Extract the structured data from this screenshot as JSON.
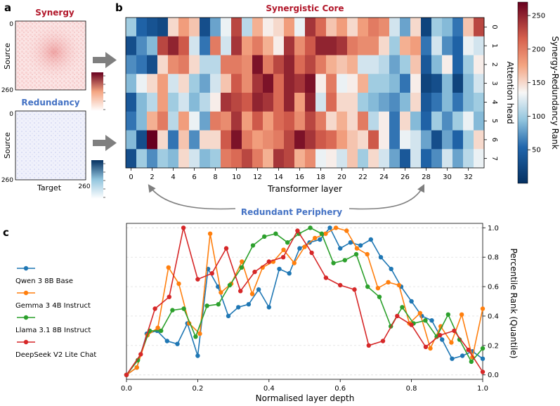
{
  "panels": {
    "a": {
      "letter": "a",
      "synergy_title": "Synergy",
      "redundancy_title": "Redundancy",
      "ylabel": "Source",
      "xlabel": "Target",
      "tick_0": "0",
      "tick_260": "260",
      "colors": {
        "synergy": "#b2182b",
        "redundancy": "#4472c4"
      }
    },
    "b": {
      "letter": "b",
      "core_label": "Synergistic Core",
      "periphery_label": "Redundant Periphery"
    },
    "c": {
      "letter": "c"
    }
  },
  "chart_data": [
    {
      "type": "heatmap",
      "title": "Synergistic Core",
      "xlabel": "Transformer layer",
      "ylabel": "Attention head",
      "colorbar_label": "Synergy-Redundancy Rank",
      "colorbar_range": [
        0,
        270
      ],
      "colorbar_ticks": [
        50,
        100,
        150,
        200,
        250
      ],
      "colormap": "RdBu_r",
      "x_ticks": [
        0,
        2,
        4,
        6,
        8,
        10,
        12,
        14,
        16,
        18,
        20,
        22,
        24,
        26,
        28,
        30,
        32
      ],
      "y_ticks": [
        0,
        1,
        2,
        3,
        4,
        5,
        6,
        7
      ],
      "n_layers": 34,
      "n_heads": 8,
      "values": [
        [
          100,
          50,
          35,
          25,
          150,
          180,
          160,
          30,
          80,
          130,
          230,
          110,
          170,
          140,
          150,
          180,
          130,
          240,
          210,
          160,
          180,
          150,
          180,
          200,
          190,
          120,
          80,
          150,
          20,
          100,
          90,
          60,
          160,
          230
        ],
        [
          30,
          70,
          90,
          230,
          250,
          220,
          120,
          60,
          200,
          120,
          240,
          180,
          200,
          170,
          140,
          240,
          190,
          220,
          250,
          250,
          240,
          200,
          190,
          190,
          150,
          100,
          170,
          180,
          60,
          120,
          70,
          50,
          130,
          120
        ],
        [
          70,
          60,
          30,
          150,
          190,
          200,
          150,
          110,
          110,
          200,
          200,
          190,
          260,
          200,
          230,
          250,
          210,
          230,
          200,
          170,
          160,
          170,
          120,
          120,
          110,
          80,
          100,
          160,
          40,
          90,
          140,
          50,
          100,
          140
        ],
        [
          90,
          130,
          150,
          180,
          120,
          150,
          100,
          80,
          120,
          160,
          220,
          190,
          240,
          260,
          210,
          250,
          240,
          260,
          140,
          200,
          130,
          140,
          170,
          100,
          100,
          90,
          60,
          140,
          20,
          30,
          90,
          20,
          90,
          120
        ],
        [
          40,
          90,
          110,
          180,
          100,
          120,
          90,
          110,
          140,
          240,
          230,
          220,
          250,
          240,
          210,
          250,
          180,
          250,
          120,
          210,
          150,
          150,
          100,
          90,
          80,
          70,
          90,
          150,
          40,
          60,
          90,
          60,
          90,
          100
        ],
        [
          60,
          90,
          170,
          200,
          110,
          180,
          130,
          80,
          200,
          190,
          240,
          180,
          220,
          180,
          210,
          220,
          190,
          230,
          200,
          150,
          170,
          150,
          200,
          110,
          140,
          60,
          150,
          90,
          50,
          100,
          70,
          100,
          130,
          90
        ],
        [
          90,
          30,
          270,
          150,
          60,
          160,
          70,
          150,
          150,
          220,
          260,
          200,
          180,
          190,
          200,
          230,
          260,
          240,
          220,
          210,
          180,
          160,
          150,
          220,
          140,
          60,
          130,
          120,
          80,
          30,
          80,
          50,
          100,
          150
        ],
        [
          30,
          100,
          70,
          100,
          90,
          150,
          120,
          90,
          100,
          200,
          210,
          230,
          200,
          170,
          240,
          230,
          170,
          190,
          130,
          140,
          120,
          160,
          100,
          150,
          120,
          80,
          40,
          120,
          50,
          70,
          120,
          80,
          110,
          130
        ]
      ]
    },
    {
      "type": "line",
      "xlabel": "Normalised layer depth",
      "ylabel": "Percentile Rank (Quantile)",
      "xlim": [
        0,
        1
      ],
      "ylim": [
        -0.03,
        1.03
      ],
      "x_ticks": [
        "0.0",
        "0.2",
        "0.4",
        "0.6",
        "0.8",
        "1.0"
      ],
      "y_ticks": [
        "0.0",
        "0.2",
        "0.4",
        "0.6",
        "0.8",
        "1.0"
      ],
      "grid": true,
      "legend_position": "left, outside",
      "series": [
        {
          "name": "Qwen 3 8B Base",
          "color": "#1f77b4",
          "x": [
            0.0,
            0.029,
            0.057,
            0.086,
            0.114,
            0.143,
            0.171,
            0.2,
            0.229,
            0.257,
            0.286,
            0.314,
            0.343,
            0.371,
            0.4,
            0.429,
            0.457,
            0.486,
            0.514,
            0.543,
            0.571,
            0.6,
            0.629,
            0.657,
            0.686,
            0.714,
            0.743,
            0.771,
            0.8,
            0.829,
            0.857,
            0.886,
            0.914,
            0.943,
            0.971,
            1.0
          ],
          "y": [
            0.0,
            0.05,
            0.28,
            0.3,
            0.23,
            0.21,
            0.35,
            0.13,
            0.72,
            0.6,
            0.4,
            0.46,
            0.48,
            0.58,
            0.46,
            0.72,
            0.69,
            0.86,
            0.9,
            0.92,
            1.0,
            0.86,
            0.9,
            0.88,
            0.92,
            0.8,
            0.72,
            0.6,
            0.5,
            0.4,
            0.37,
            0.24,
            0.11,
            0.13,
            0.16,
            0.11
          ]
        },
        {
          "name": "Gemma 3 4B Instruct",
          "color": "#ff7f0e",
          "x": [
            0.0,
            0.029,
            0.059,
            0.088,
            0.118,
            0.147,
            0.176,
            0.206,
            0.235,
            0.265,
            0.294,
            0.324,
            0.353,
            0.382,
            0.412,
            0.441,
            0.471,
            0.5,
            0.529,
            0.559,
            0.588,
            0.618,
            0.647,
            0.676,
            0.706,
            0.735,
            0.765,
            0.794,
            0.824,
            0.853,
            0.882,
            0.912,
            0.941,
            0.971,
            1.0
          ],
          "y": [
            0.0,
            0.05,
            0.27,
            0.32,
            0.73,
            0.62,
            0.35,
            0.28,
            0.96,
            0.56,
            0.62,
            0.77,
            0.55,
            0.73,
            0.77,
            0.85,
            0.76,
            0.87,
            0.93,
            0.96,
            1.0,
            0.98,
            0.86,
            0.82,
            0.59,
            0.63,
            0.61,
            0.35,
            0.42,
            0.18,
            0.33,
            0.22,
            0.41,
            0.12,
            0.45
          ]
        },
        {
          "name": "Llama 3.1 8B Instruct",
          "color": "#2ca02c",
          "x": [
            0.0,
            0.032,
            0.065,
            0.097,
            0.129,
            0.161,
            0.194,
            0.226,
            0.258,
            0.29,
            0.323,
            0.355,
            0.387,
            0.419,
            0.452,
            0.484,
            0.516,
            0.548,
            0.581,
            0.613,
            0.645,
            0.677,
            0.71,
            0.742,
            0.774,
            0.806,
            0.839,
            0.871,
            0.903,
            0.935,
            0.968,
            1.0
          ],
          "y": [
            0.0,
            0.1,
            0.3,
            0.3,
            0.44,
            0.45,
            0.26,
            0.47,
            0.48,
            0.61,
            0.73,
            0.88,
            0.94,
            0.96,
            0.9,
            0.96,
            1.0,
            0.96,
            0.76,
            0.78,
            0.82,
            0.6,
            0.53,
            0.33,
            0.46,
            0.35,
            0.37,
            0.26,
            0.41,
            0.24,
            0.09,
            0.18
          ]
        },
        {
          "name": "DeepSeek V2 Lite Chat",
          "color": "#d62728",
          "x": [
            0.0,
            0.04,
            0.08,
            0.12,
            0.16,
            0.2,
            0.24,
            0.28,
            0.32,
            0.36,
            0.4,
            0.44,
            0.48,
            0.52,
            0.56,
            0.6,
            0.64,
            0.68,
            0.72,
            0.76,
            0.8,
            0.84,
            0.88,
            0.92,
            0.96,
            1.0
          ],
          "y": [
            0.0,
            0.14,
            0.45,
            0.53,
            1.0,
            0.65,
            0.69,
            0.86,
            0.57,
            0.7,
            0.77,
            0.8,
            0.98,
            0.83,
            0.66,
            0.61,
            0.58,
            0.2,
            0.23,
            0.4,
            0.34,
            0.19,
            0.27,
            0.3,
            0.17,
            0.02
          ]
        }
      ]
    }
  ]
}
